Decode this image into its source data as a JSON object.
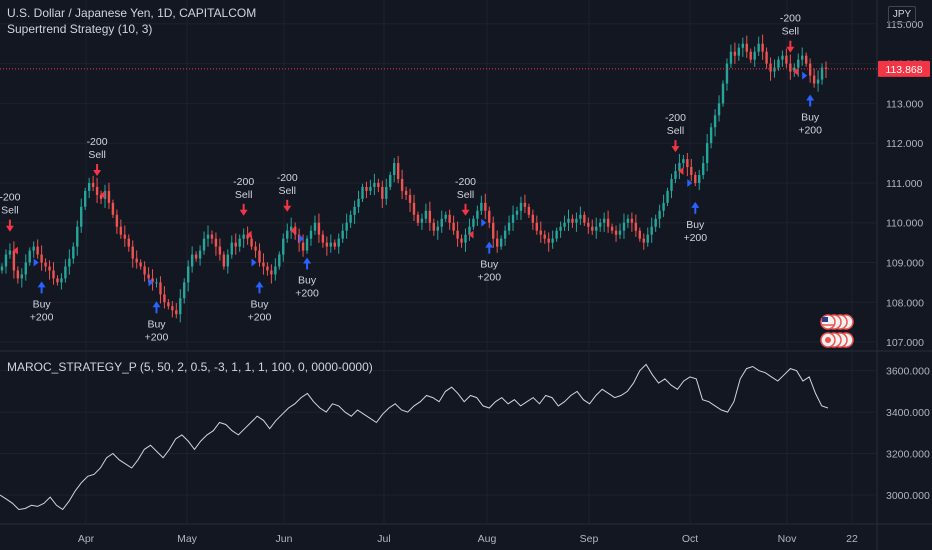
{
  "header": {
    "symbol_title": "U.S. Dollar / Japanese Yen, 1D, CAPITALCOM",
    "study_title": "Supertrend Strategy (10, 3)",
    "currency_badge": "JPY",
    "lower_title": "MAROC_STRATEGY_P (5, 50, 2, 0.5, -3, 1, 1, 1, 100, 0, 0000-0000)"
  },
  "colors": {
    "background": "#131722",
    "up": "#26a69a",
    "down": "#ef5350",
    "buy": "#2962ff",
    "sell": "#f23645",
    "equity_line": "#d1d4dc",
    "price_tag": "#f23645"
  },
  "chart_data": [
    {
      "type": "candlestick",
      "price_tag": "113.868",
      "last_price": 113.868,
      "ylim": [
        106.8,
        115.6
      ],
      "y_ticks": [
        "115.000",
        "114.000",
        "113.000",
        "112.000",
        "111.000",
        "110.000",
        "109.000",
        "108.000",
        "107.000"
      ],
      "x_ticks": [
        "Apr",
        "May",
        "Jun",
        "Jul",
        "Aug",
        "Sep",
        "Oct",
        "Nov",
        "22"
      ],
      "grid": true,
      "closes": [
        108.9,
        109.2,
        109.3,
        108.8,
        108.6,
        108.7,
        109.0,
        109.3,
        109.4,
        109.2,
        109.0,
        108.9,
        108.8,
        108.6,
        108.5,
        108.6,
        108.9,
        109.1,
        109.4,
        109.9,
        110.4,
        110.8,
        111.0,
        110.9,
        110.7,
        110.6,
        110.8,
        110.5,
        110.2,
        109.9,
        109.7,
        109.6,
        109.4,
        109.1,
        109.0,
        108.9,
        108.7,
        108.6,
        108.5,
        108.5,
        108.2,
        108.0,
        107.9,
        107.8,
        107.7,
        108.1,
        108.5,
        108.9,
        109.2,
        109.1,
        109.3,
        109.6,
        109.7,
        109.6,
        109.4,
        109.2,
        108.9,
        109.2,
        109.5,
        109.4,
        109.6,
        109.7,
        109.6,
        109.4,
        109.3,
        109.0,
        108.9,
        108.8,
        108.7,
        108.9,
        109.2,
        109.6,
        109.8,
        109.9,
        109.7,
        109.5,
        109.3,
        109.6,
        109.8,
        110.0,
        109.7,
        109.5,
        109.4,
        109.5,
        109.4,
        109.6,
        109.8,
        110.0,
        110.2,
        110.4,
        110.6,
        110.9,
        110.8,
        110.9,
        111.0,
        110.9,
        110.6,
        110.9,
        111.2,
        111.5,
        111.1,
        110.8,
        110.7,
        110.5,
        110.2,
        110.0,
        110.1,
        110.3,
        110.0,
        109.8,
        109.9,
        110.1,
        110.2,
        110.0,
        109.8,
        109.6,
        109.5,
        109.7,
        109.9,
        110.1,
        110.3,
        110.5,
        110.3,
        110.0,
        109.6,
        109.4,
        109.6,
        109.8,
        110.0,
        110.2,
        110.3,
        110.5,
        110.4,
        110.2,
        110.0,
        109.8,
        109.7,
        109.6,
        109.5,
        109.6,
        109.8,
        109.9,
        110.0,
        110.1,
        110.0,
        110.1,
        110.2,
        110.0,
        109.9,
        109.8,
        109.9,
        110.0,
        110.1,
        109.9,
        109.8,
        109.7,
        109.8,
        110.0,
        110.1,
        110.0,
        109.8,
        109.6,
        109.5,
        109.7,
        109.9,
        110.1,
        110.3,
        110.5,
        110.8,
        111.1,
        111.3,
        111.5,
        111.6,
        111.4,
        111.2,
        111.0,
        111.2,
        111.5,
        112.0,
        112.4,
        112.7,
        113.0,
        113.5,
        114.0,
        114.3,
        114.2,
        114.4,
        114.5,
        114.3,
        114.1,
        114.3,
        114.5,
        114.3,
        114.0,
        113.8,
        113.9,
        114.1,
        114.2,
        114.0,
        113.8,
        113.9,
        114.1,
        114.2,
        114.0,
        113.7,
        113.5,
        113.6,
        113.9,
        113.868
      ],
      "signals": [
        {
          "kind": "sell",
          "label": "Sell",
          "qty": "-200",
          "bar": 2
        },
        {
          "kind": "buy",
          "label": "Buy",
          "qty": "+200",
          "bar": 10
        },
        {
          "kind": "sell",
          "label": "Sell",
          "qty": "-200",
          "bar": 24
        },
        {
          "kind": "buy",
          "label": "Buy",
          "qty": "+200",
          "bar": 39
        },
        {
          "kind": "sell",
          "label": "Sell",
          "qty": "-200",
          "bar": 61
        },
        {
          "kind": "buy",
          "label": "Buy",
          "qty": "+200",
          "bar": 65
        },
        {
          "kind": "sell",
          "label": "Sell",
          "qty": "-200",
          "bar": 72
        },
        {
          "kind": "buy",
          "label": "Buy",
          "qty": "+200",
          "bar": 77
        },
        {
          "kind": "sell",
          "label": "Sell",
          "qty": "-200",
          "bar": 117
        },
        {
          "kind": "buy",
          "label": "Buy",
          "qty": "+200",
          "bar": 123
        },
        {
          "kind": "sell",
          "label": "Sell",
          "qty": "-200",
          "bar": 170
        },
        {
          "kind": "buy",
          "label": "Buy",
          "qty": "+200",
          "bar": 175
        },
        {
          "kind": "sell",
          "label": "Sell",
          "qty": "-200",
          "bar": 199
        },
        {
          "kind": "buy",
          "label": "Buy",
          "qty": "+200",
          "bar": 204
        }
      ]
    },
    {
      "type": "line",
      "ylim": [
        2860,
        3690
      ],
      "y_ticks": [
        "3600.000",
        "3400.000",
        "3200.000",
        "3000.000"
      ],
      "values": [
        3000,
        2980,
        2960,
        2930,
        2935,
        2950,
        2945,
        2960,
        2990,
        2950,
        2930,
        2970,
        3020,
        3060,
        3090,
        3100,
        3130,
        3180,
        3200,
        3170,
        3150,
        3130,
        3170,
        3220,
        3240,
        3210,
        3180,
        3220,
        3270,
        3290,
        3260,
        3220,
        3260,
        3290,
        3310,
        3350,
        3340,
        3310,
        3290,
        3320,
        3350,
        3380,
        3360,
        3320,
        3360,
        3390,
        3420,
        3440,
        3470,
        3490,
        3450,
        3420,
        3400,
        3440,
        3430,
        3400,
        3380,
        3410,
        3390,
        3370,
        3350,
        3390,
        3420,
        3440,
        3410,
        3400,
        3430,
        3450,
        3480,
        3470,
        3450,
        3500,
        3520,
        3490,
        3450,
        3480,
        3470,
        3430,
        3420,
        3450,
        3470,
        3440,
        3460,
        3430,
        3450,
        3470,
        3440,
        3480,
        3470,
        3430,
        3450,
        3480,
        3500,
        3460,
        3440,
        3480,
        3510,
        3490,
        3470,
        3480,
        3500,
        3540,
        3600,
        3630,
        3580,
        3540,
        3560,
        3530,
        3510,
        3550,
        3570,
        3560,
        3460,
        3450,
        3430,
        3410,
        3400,
        3450,
        3560,
        3610,
        3620,
        3600,
        3590,
        3570,
        3550,
        3580,
        3610,
        3600,
        3550,
        3570,
        3490,
        3430,
        3420
      ],
      "grid": true
    }
  ]
}
